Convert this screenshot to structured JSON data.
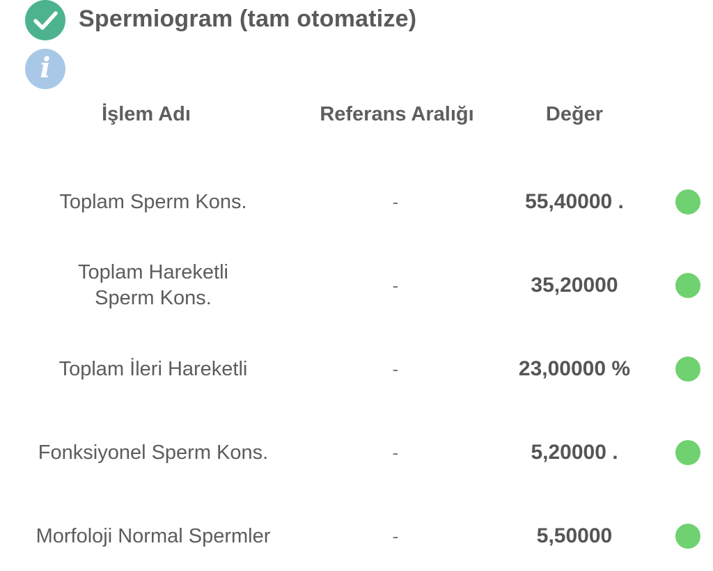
{
  "header": {
    "title": "Spermiogram (tam otomatize)",
    "status_icon": "check-circle-icon",
    "info_icon": "info-icon",
    "info_glyph": "i",
    "colors": {
      "check": "#4db38e",
      "info": "#a9c8e8",
      "status_ok": "#6fd16f"
    }
  },
  "table": {
    "columns": {
      "name": "İşlem Adı",
      "reference": "Referans Aralığı",
      "value": "Değer"
    },
    "rows": [
      {
        "name": "Toplam Sperm Kons.",
        "reference": "-",
        "value": "55,40000 .",
        "status": "normal"
      },
      {
        "name": "Toplam Hareketli\nSperm Kons.",
        "reference": "-",
        "value": "35,20000",
        "status": "normal"
      },
      {
        "name": "Toplam İleri Hareketli",
        "reference": "-",
        "value": "23,00000 %",
        "status": "normal"
      },
      {
        "name": "Fonksiyonel Sperm Kons.",
        "reference": "-",
        "value": "5,20000 .",
        "status": "normal"
      },
      {
        "name": "Morfoloji Normal Spermler",
        "reference": "-",
        "value": "5,50000",
        "status": "normal"
      }
    ]
  }
}
